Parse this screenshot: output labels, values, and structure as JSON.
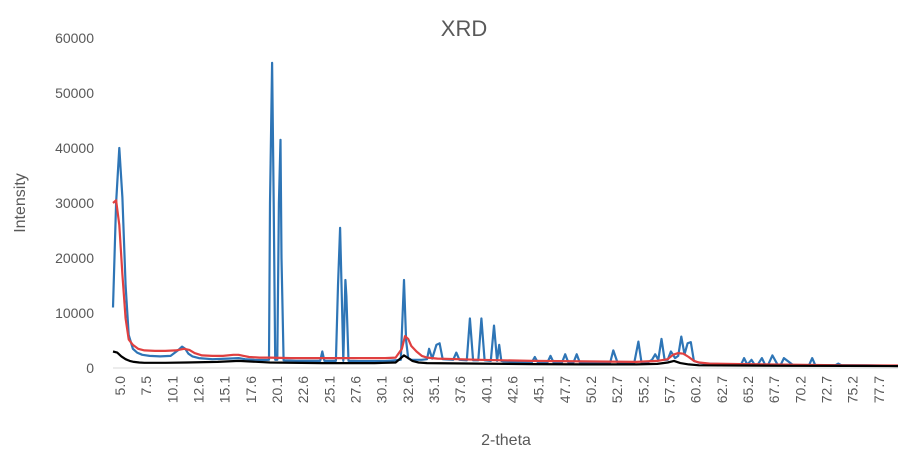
{
  "chart_data": {
    "type": "line",
    "title": "XRD",
    "xlabel": "2-theta",
    "ylabel": "Intensity",
    "xlim": [
      5.0,
      80.0
    ],
    "ylim": [
      0,
      60000
    ],
    "y_ticks": [
      0,
      10000,
      20000,
      30000,
      40000,
      50000,
      60000
    ],
    "x_tick_labels": [
      "5.0",
      "7.5",
      "10.1",
      "12.6",
      "15.1",
      "17.6",
      "20.1",
      "22.6",
      "25.1",
      "27.6",
      "30.1",
      "32.6",
      "35.1",
      "37.6",
      "40.1",
      "42.6",
      "45.1",
      "47.7",
      "50.2",
      "52.7",
      "55.2",
      "57.7",
      "60.2",
      "62.7",
      "65.2",
      "67.7",
      "70.2",
      "72.7",
      "75.2",
      "77.7"
    ],
    "grid": false,
    "legend": "none",
    "series": [
      {
        "color": "#2e75b6",
        "x": [
          5.0,
          5.3,
          5.6,
          5.9,
          6.2,
          6.5,
          6.9,
          7.3,
          7.8,
          8.5,
          9.5,
          10.5,
          11.2,
          11.6,
          11.9,
          12.2,
          12.6,
          13.2,
          14.5,
          16.0,
          17.0,
          17.6,
          18.5,
          19.5,
          19.9,
          20.0,
          20.2,
          20.35,
          20.5,
          20.7,
          20.85,
          21.0,
          21.1,
          21.3,
          22.5,
          24.8,
          25.0,
          25.2,
          26.3,
          26.5,
          26.7,
          26.9,
          27.0,
          27.2,
          27.3,
          27.5,
          28.5,
          31.0,
          32.5,
          32.8,
          33.0,
          33.2,
          33.5,
          34.5,
          35.0,
          35.2,
          35.5,
          35.9,
          36.2,
          36.5,
          37.5,
          37.8,
          38.1,
          38.8,
          39.1,
          39.4,
          39.9,
          40.2,
          40.5,
          41.1,
          41.4,
          41.7,
          41.9,
          42.1,
          42.3,
          43.0,
          45.0,
          45.3,
          45.6,
          46.5,
          46.8,
          47.1,
          47.9,
          48.2,
          48.5,
          49.0,
          49.3,
          49.6,
          51.5,
          52.5,
          52.8,
          53.2,
          54.8,
          55.2,
          55.5,
          56.0,
          56.5,
          56.8,
          57.1,
          57.4,
          57.7,
          58.0,
          58.3,
          58.7,
          59.0,
          59.3,
          59.6,
          59.9,
          60.2,
          60.5,
          60.9,
          61.5,
          63.0,
          65.0,
          65.3,
          65.6,
          66.0,
          66.3,
          66.6,
          67.0,
          67.3,
          67.6,
          68.0,
          68.5,
          68.8,
          69.1,
          70.0,
          71.5,
          71.8,
          72.1,
          74.0,
          74.3,
          74.6,
          77.0,
          80.0
        ],
        "y": [
          11000,
          30000,
          40000,
          31000,
          15000,
          6000,
          3500,
          2800,
          2400,
          2200,
          2100,
          2200,
          3200,
          3900,
          3500,
          2600,
          2100,
          1800,
          1600,
          1700,
          1800,
          1600,
          1500,
          1450,
          1500,
          30000,
          55500,
          30000,
          1500,
          1500,
          30000,
          41500,
          20000,
          1400,
          1300,
          1300,
          3000,
          1300,
          1300,
          15000,
          25500,
          10000,
          1300,
          16000,
          13000,
          1300,
          1250,
          1250,
          1500,
          16000,
          5000,
          1800,
          1500,
          1500,
          1600,
          3500,
          1700,
          4200,
          4500,
          1600,
          1500,
          2800,
          1500,
          1400,
          9000,
          1400,
          1400,
          9000,
          1400,
          1300,
          7700,
          1300,
          4200,
          1300,
          1200,
          1100,
          1000,
          2000,
          1000,
          1000,
          2200,
          1000,
          1000,
          2500,
          1000,
          1000,
          2500,
          1000,
          1000,
          1000,
          3200,
          1000,
          900,
          4800,
          900,
          900,
          1500,
          2500,
          1500,
          5300,
          1500,
          1500,
          3000,
          1800,
          2200,
          5700,
          2500,
          4500,
          4700,
          1300,
          1000,
          800,
          700,
          600,
          1800,
          600,
          1500,
          600,
          600,
          1800,
          600,
          600,
          2300,
          600,
          600,
          1800,
          500,
          500,
          1800,
          500,
          500,
          800,
          500,
          500,
          400
        ]
      },
      {
        "color": "#e04040",
        "x": [
          5.0,
          5.3,
          5.6,
          5.9,
          6.2,
          6.5,
          6.9,
          7.4,
          8.0,
          9.0,
          10.0,
          11.0,
          11.8,
          12.3,
          12.8,
          13.5,
          14.5,
          15.5,
          16.5,
          17.0,
          17.5,
          18.0,
          19.0,
          20.0,
          22.0,
          25.0,
          28.0,
          31.0,
          32.0,
          32.6,
          32.9,
          33.2,
          33.5,
          34.0,
          34.5,
          35.0,
          36.0,
          40.0,
          45.0,
          50.0,
          55.0,
          57.0,
          58.0,
          58.5,
          59.0,
          59.5,
          60.0,
          60.5,
          61.0,
          62.0,
          65.0,
          70.0,
          75.0,
          80.0
        ],
        "y": [
          30000,
          30500,
          26000,
          17000,
          9000,
          5200,
          4200,
          3500,
          3200,
          3100,
          3100,
          3200,
          3500,
          3300,
          2700,
          2300,
          2200,
          2200,
          2400,
          2400,
          2200,
          2000,
          1900,
          1900,
          1800,
          1800,
          1800,
          1800,
          1900,
          3500,
          5800,
          5300,
          4000,
          3000,
          2200,
          1900,
          1700,
          1500,
          1300,
          1200,
          1100,
          1300,
          1600,
          2400,
          2700,
          2600,
          2000,
          1300,
          1000,
          800,
          700,
          600,
          500,
          450
        ]
      },
      {
        "color": "#000000",
        "x": [
          5.0,
          5.4,
          5.8,
          6.2,
          6.6,
          7.0,
          7.5,
          8.0,
          9.0,
          10.0,
          12.0,
          15.0,
          17.0,
          20.0,
          25.0,
          30.0,
          32.0,
          32.5,
          32.8,
          33.2,
          33.6,
          34.2,
          35.0,
          40.0,
          45.0,
          50.0,
          55.0,
          57.0,
          58.0,
          58.6,
          59.2,
          60.0,
          61.0,
          65.0,
          70.0,
          75.0,
          80.0
        ],
        "y": [
          3000,
          2800,
          2100,
          1600,
          1300,
          1100,
          1000,
          950,
          950,
          950,
          1000,
          1100,
          1300,
          1000,
          900,
          900,
          1000,
          1800,
          2300,
          1800,
          1300,
          1000,
          900,
          800,
          700,
          650,
          650,
          750,
          1000,
          1300,
          900,
          650,
          500,
          450,
          400,
          380,
          350
        ]
      }
    ]
  }
}
